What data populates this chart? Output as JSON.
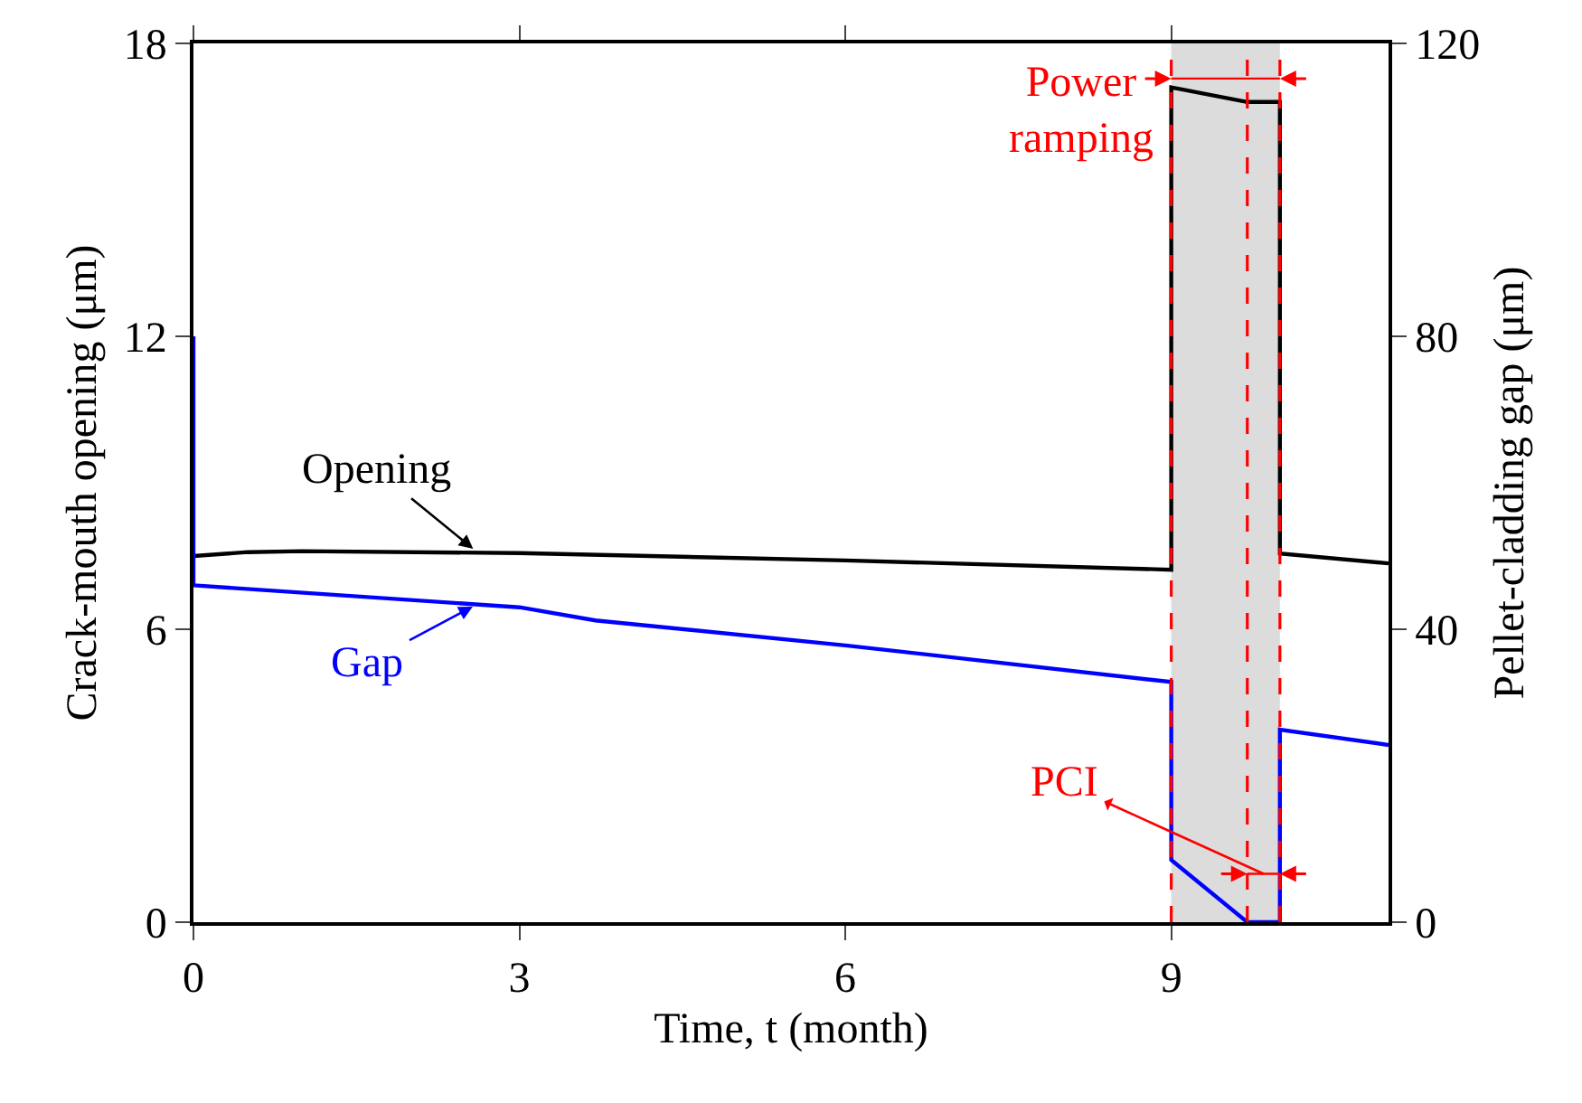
{
  "chart_data": {
    "type": "line",
    "xlabel": "Time, t (month)",
    "ylabel": "Crack-mouth opening (μm)",
    "y2label": "Pellet-cladding gap (μm)",
    "xlim": [
      0,
      11
    ],
    "xticks": [
      0,
      3,
      6,
      9
    ],
    "ylim": [
      0,
      18
    ],
    "yticks": [
      0,
      6,
      12,
      18
    ],
    "y2lim": [
      0,
      120
    ],
    "y2ticks": [
      0,
      40,
      80,
      120
    ],
    "series": [
      {
        "color": "#000000",
        "x": [
          0,
          0.5,
          1,
          3,
          6,
          9,
          9,
          9.7,
          10,
          10,
          11
        ],
        "values": [
          7.5,
          7.58,
          7.6,
          7.56,
          7.41,
          7.22,
          17.1,
          16.8,
          16.8,
          7.55,
          7.35
        ]
      },
      {
        "color": "#0000ff",
        "axis": "y2",
        "x": [
          0,
          0,
          3,
          3.7,
          6,
          9,
          9,
          9.7,
          10,
          10,
          11
        ],
        "values": [
          80,
          46,
          43,
          41.2,
          37.8,
          32.8,
          8.5,
          0,
          0,
          26.3,
          24.2
        ]
      }
    ],
    "ref_lines": [
      {
        "axis": "x",
        "value": 9,
        "color": "#ff0000",
        "line_style": "dashed"
      },
      {
        "axis": "x",
        "value": 9.7,
        "color": "#ff0000",
        "line_style": "dashed"
      },
      {
        "axis": "x",
        "value": 10,
        "color": "#ff0000",
        "line_style": "dashed"
      }
    ],
    "bands": [
      {
        "axis": "x",
        "from": 9,
        "to": 10,
        "label": "Power ramping",
        "color": "#dcdcdc"
      }
    ],
    "annotations": [
      {
        "text": "Opening",
        "x": 2.6,
        "y": 7.6
      },
      {
        "text": "Gap",
        "x": 2.6,
        "y": 6.5
      },
      "PCI"
    ],
    "grid": false,
    "marker": "none",
    "line_style": "solid"
  }
}
